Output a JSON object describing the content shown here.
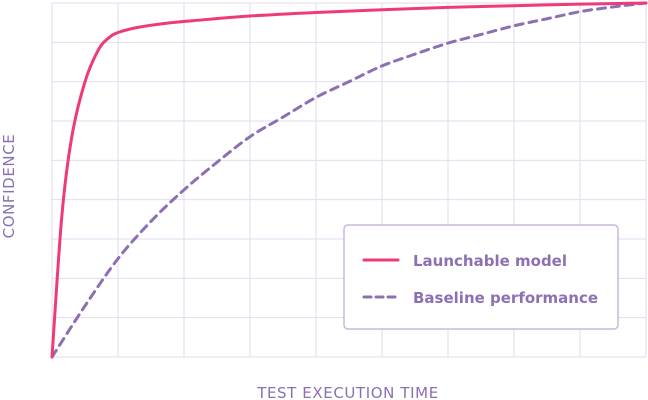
{
  "chart_data": {
    "type": "line",
    "xlabel": "TEST EXECUTION TIME",
    "ylabel": "CONFIDENCE",
    "xlim": [
      0,
      9
    ],
    "ylim": [
      0,
      9
    ],
    "grid": true,
    "legend": "bottom-right",
    "series": [
      {
        "name": "Launchable model",
        "style": "solid",
        "color": "#ee3a78",
        "x": [
          0,
          0.15,
          0.3,
          0.5,
          0.7,
          0.85,
          1.0,
          1.3,
          1.7,
          2.2,
          3.0,
          4.0,
          5.0,
          6.0,
          7.0,
          8.0,
          9.0
        ],
        "y": [
          0,
          3.6,
          5.6,
          7.0,
          7.8,
          8.1,
          8.25,
          8.38,
          8.48,
          8.56,
          8.67,
          8.76,
          8.83,
          8.89,
          8.93,
          8.97,
          9.0
        ]
      },
      {
        "name": "Baseline performance",
        "style": "dashed",
        "color": "#8c70b3",
        "x": [
          0,
          0.5,
          1.0,
          1.5,
          2.0,
          2.5,
          3.0,
          3.5,
          4.0,
          4.5,
          5.0,
          5.5,
          6.0,
          6.5,
          7.0,
          7.5,
          8.0,
          8.5,
          9.0
        ],
        "y": [
          0,
          1.3,
          2.5,
          3.45,
          4.25,
          4.95,
          5.6,
          6.1,
          6.6,
          7.0,
          7.4,
          7.7,
          7.98,
          8.2,
          8.42,
          8.6,
          8.78,
          8.9,
          9.0
        ]
      }
    ]
  }
}
